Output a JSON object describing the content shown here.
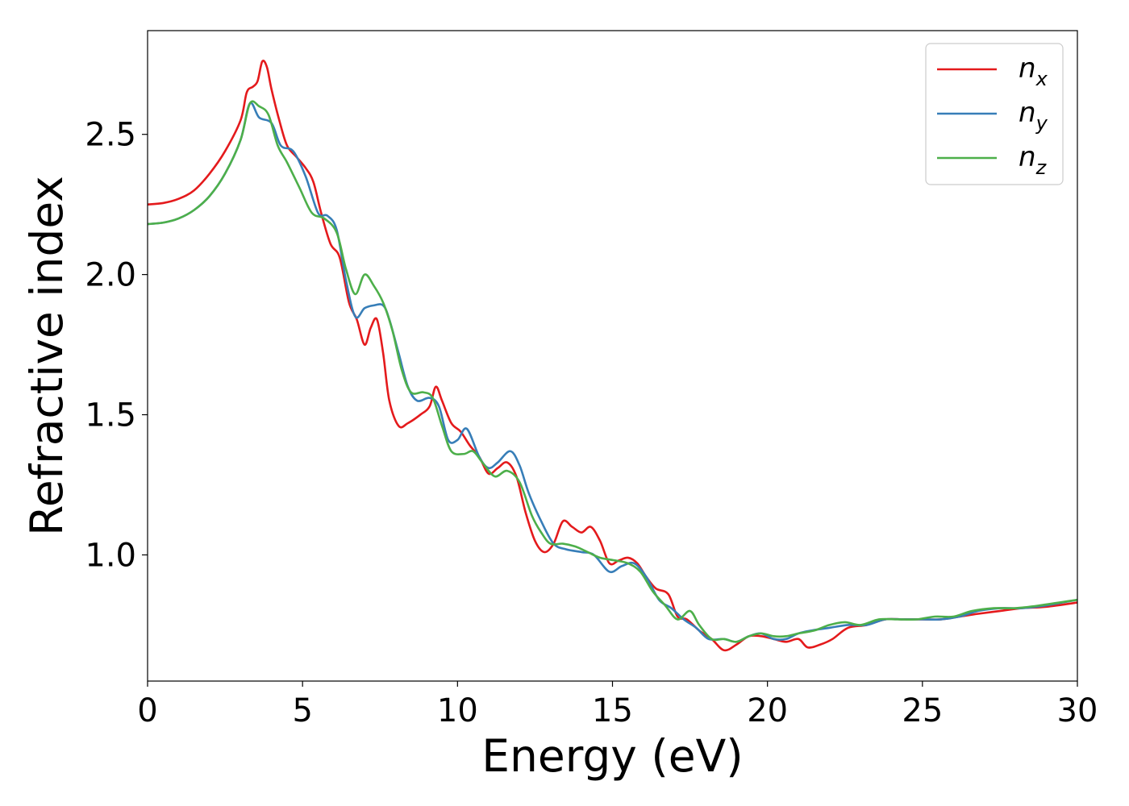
{
  "chart_data": {
    "type": "line",
    "title": "",
    "xlabel": "Energy (eV)",
    "ylabel": "Refractive index",
    "xlim": [
      0,
      30
    ],
    "ylim": [
      0.55,
      2.87
    ],
    "xticks": [
      0,
      5,
      10,
      15,
      20,
      25,
      30
    ],
    "xtick_labels": [
      "0",
      "5",
      "10",
      "15",
      "20",
      "25",
      "30"
    ],
    "yticks": [
      1.0,
      1.5,
      2.0,
      2.5
    ],
    "ytick_labels": [
      "1.0",
      "1.5",
      "2.0",
      "2.5"
    ],
    "grid": false,
    "legend_position": "top-right",
    "series": [
      {
        "name": "n_x",
        "legend_base": "n",
        "legend_sub": "x",
        "color": "#e41a1c",
        "points": [
          [
            0,
            2.25
          ],
          [
            0.5,
            2.255
          ],
          [
            1,
            2.27
          ],
          [
            1.5,
            2.3
          ],
          [
            2,
            2.36
          ],
          [
            2.5,
            2.44
          ],
          [
            3,
            2.55
          ],
          [
            3.2,
            2.65
          ],
          [
            3.4,
            2.67
          ],
          [
            3.55,
            2.69
          ],
          [
            3.7,
            2.76
          ],
          [
            3.85,
            2.74
          ],
          [
            4,
            2.66
          ],
          [
            4.25,
            2.55
          ],
          [
            4.5,
            2.46
          ],
          [
            4.8,
            2.42
          ],
          [
            5.1,
            2.38
          ],
          [
            5.35,
            2.33
          ],
          [
            5.6,
            2.22
          ],
          [
            5.9,
            2.11
          ],
          [
            6.2,
            2.06
          ],
          [
            6.5,
            1.9
          ],
          [
            6.75,
            1.84
          ],
          [
            7,
            1.75
          ],
          [
            7.2,
            1.81
          ],
          [
            7.4,
            1.84
          ],
          [
            7.6,
            1.72
          ],
          [
            7.8,
            1.55
          ],
          [
            8.1,
            1.46
          ],
          [
            8.4,
            1.47
          ],
          [
            8.8,
            1.5
          ],
          [
            9.1,
            1.53
          ],
          [
            9.3,
            1.6
          ],
          [
            9.5,
            1.55
          ],
          [
            9.8,
            1.47
          ],
          [
            10.1,
            1.44
          ],
          [
            10.4,
            1.39
          ],
          [
            10.7,
            1.35
          ],
          [
            11,
            1.29
          ],
          [
            11.3,
            1.31
          ],
          [
            11.6,
            1.33
          ],
          [
            11.9,
            1.28
          ],
          [
            12.2,
            1.15
          ],
          [
            12.5,
            1.05
          ],
          [
            12.8,
            1.01
          ],
          [
            13.1,
            1.04
          ],
          [
            13.4,
            1.12
          ],
          [
            13.7,
            1.1
          ],
          [
            14,
            1.08
          ],
          [
            14.3,
            1.1
          ],
          [
            14.6,
            1.05
          ],
          [
            14.9,
            0.97
          ],
          [
            15.2,
            0.98
          ],
          [
            15.5,
            0.99
          ],
          [
            15.8,
            0.97
          ],
          [
            16.1,
            0.92
          ],
          [
            16.4,
            0.88
          ],
          [
            16.8,
            0.86
          ],
          [
            17.1,
            0.78
          ],
          [
            17.4,
            0.77
          ],
          [
            17.8,
            0.73
          ],
          [
            18.2,
            0.7
          ],
          [
            18.6,
            0.66
          ],
          [
            19,
            0.68
          ],
          [
            19.4,
            0.71
          ],
          [
            19.8,
            0.71
          ],
          [
            20.2,
            0.7
          ],
          [
            20.6,
            0.69
          ],
          [
            21,
            0.7
          ],
          [
            21.3,
            0.67
          ],
          [
            21.7,
            0.68
          ],
          [
            22.1,
            0.7
          ],
          [
            22.6,
            0.74
          ],
          [
            23.2,
            0.75
          ],
          [
            23.8,
            0.77
          ],
          [
            24.4,
            0.77
          ],
          [
            25,
            0.77
          ],
          [
            25.6,
            0.77
          ],
          [
            26.2,
            0.78
          ],
          [
            26.8,
            0.79
          ],
          [
            27.5,
            0.8
          ],
          [
            28.2,
            0.81
          ],
          [
            29,
            0.815
          ],
          [
            30,
            0.83
          ]
        ]
      },
      {
        "name": "n_y",
        "legend_base": "n",
        "legend_sub": "y",
        "color": "#377eb8",
        "points": [
          [
            0,
            2.18
          ],
          [
            0.5,
            2.185
          ],
          [
            1,
            2.2
          ],
          [
            1.5,
            2.23
          ],
          [
            2,
            2.28
          ],
          [
            2.5,
            2.36
          ],
          [
            3,
            2.48
          ],
          [
            3.3,
            2.61
          ],
          [
            3.6,
            2.56
          ],
          [
            4,
            2.54
          ],
          [
            4.3,
            2.46
          ],
          [
            4.7,
            2.44
          ],
          [
            5.1,
            2.35
          ],
          [
            5.5,
            2.22
          ],
          [
            5.8,
            2.21
          ],
          [
            6.1,
            2.16
          ],
          [
            6.4,
            1.98
          ],
          [
            6.7,
            1.85
          ],
          [
            7,
            1.88
          ],
          [
            7.3,
            1.89
          ],
          [
            7.6,
            1.89
          ],
          [
            7.8,
            1.84
          ],
          [
            8.1,
            1.72
          ],
          [
            8.4,
            1.6
          ],
          [
            8.7,
            1.55
          ],
          [
            9.1,
            1.56
          ],
          [
            9.4,
            1.53
          ],
          [
            9.7,
            1.41
          ],
          [
            10,
            1.41
          ],
          [
            10.3,
            1.45
          ],
          [
            10.7,
            1.35
          ],
          [
            11,
            1.31
          ],
          [
            11.3,
            1.33
          ],
          [
            11.7,
            1.37
          ],
          [
            12,
            1.32
          ],
          [
            12.3,
            1.22
          ],
          [
            12.7,
            1.12
          ],
          [
            13.1,
            1.04
          ],
          [
            13.5,
            1.02
          ],
          [
            14,
            1.01
          ],
          [
            14.4,
            1.0
          ],
          [
            14.9,
            0.94
          ],
          [
            15.3,
            0.96
          ],
          [
            15.7,
            0.97
          ],
          [
            16.1,
            0.92
          ],
          [
            16.5,
            0.84
          ],
          [
            16.9,
            0.81
          ],
          [
            17.3,
            0.77
          ],
          [
            17.7,
            0.74
          ],
          [
            18.1,
            0.7
          ],
          [
            18.6,
            0.7
          ],
          [
            19,
            0.69
          ],
          [
            19.4,
            0.71
          ],
          [
            19.8,
            0.72
          ],
          [
            20.2,
            0.7
          ],
          [
            20.6,
            0.7
          ],
          [
            21,
            0.72
          ],
          [
            21.4,
            0.73
          ],
          [
            22,
            0.74
          ],
          [
            22.6,
            0.75
          ],
          [
            23.2,
            0.75
          ],
          [
            23.8,
            0.77
          ],
          [
            24.4,
            0.77
          ],
          [
            25,
            0.77
          ],
          [
            25.6,
            0.77
          ],
          [
            26.2,
            0.78
          ],
          [
            26.8,
            0.8
          ],
          [
            27.5,
            0.81
          ],
          [
            28.2,
            0.81
          ],
          [
            29,
            0.82
          ],
          [
            30,
            0.84
          ]
        ]
      },
      {
        "name": "n_z",
        "legend_base": "n",
        "legend_sub": "z",
        "color": "#4daf4a",
        "points": [
          [
            0,
            2.18
          ],
          [
            0.5,
            2.185
          ],
          [
            1,
            2.2
          ],
          [
            1.5,
            2.23
          ],
          [
            2,
            2.28
          ],
          [
            2.5,
            2.36
          ],
          [
            3,
            2.48
          ],
          [
            3.3,
            2.61
          ],
          [
            3.6,
            2.6
          ],
          [
            3.9,
            2.57
          ],
          [
            4.2,
            2.46
          ],
          [
            4.5,
            2.4
          ],
          [
            4.9,
            2.31
          ],
          [
            5.3,
            2.22
          ],
          [
            5.7,
            2.2
          ],
          [
            6.1,
            2.15
          ],
          [
            6.4,
            2.02
          ],
          [
            6.7,
            1.93
          ],
          [
            7,
            2.0
          ],
          [
            7.3,
            1.96
          ],
          [
            7.6,
            1.9
          ],
          [
            7.9,
            1.8
          ],
          [
            8.2,
            1.66
          ],
          [
            8.5,
            1.58
          ],
          [
            8.9,
            1.58
          ],
          [
            9.2,
            1.56
          ],
          [
            9.5,
            1.46
          ],
          [
            9.8,
            1.37
          ],
          [
            10.2,
            1.36
          ],
          [
            10.5,
            1.37
          ],
          [
            10.8,
            1.33
          ],
          [
            11.2,
            1.28
          ],
          [
            11.6,
            1.3
          ],
          [
            12,
            1.26
          ],
          [
            12.4,
            1.14
          ],
          [
            12.7,
            1.08
          ],
          [
            13,
            1.04
          ],
          [
            13.4,
            1.04
          ],
          [
            13.8,
            1.03
          ],
          [
            14.2,
            1.01
          ],
          [
            14.6,
            0.99
          ],
          [
            15.1,
            0.98
          ],
          [
            15.5,
            0.97
          ],
          [
            15.9,
            0.94
          ],
          [
            16.3,
            0.87
          ],
          [
            16.7,
            0.82
          ],
          [
            17.1,
            0.77
          ],
          [
            17.5,
            0.8
          ],
          [
            17.8,
            0.75
          ],
          [
            18.2,
            0.7
          ],
          [
            18.6,
            0.7
          ],
          [
            19,
            0.69
          ],
          [
            19.4,
            0.71
          ],
          [
            19.8,
            0.72
          ],
          [
            20.2,
            0.71
          ],
          [
            20.6,
            0.71
          ],
          [
            21,
            0.72
          ],
          [
            21.5,
            0.73
          ],
          [
            22,
            0.75
          ],
          [
            22.5,
            0.76
          ],
          [
            23,
            0.75
          ],
          [
            23.6,
            0.77
          ],
          [
            24.2,
            0.77
          ],
          [
            24.8,
            0.77
          ],
          [
            25.4,
            0.78
          ],
          [
            26,
            0.78
          ],
          [
            26.6,
            0.8
          ],
          [
            27.3,
            0.81
          ],
          [
            28,
            0.81
          ],
          [
            28.8,
            0.82
          ],
          [
            30,
            0.84
          ]
        ]
      }
    ]
  }
}
